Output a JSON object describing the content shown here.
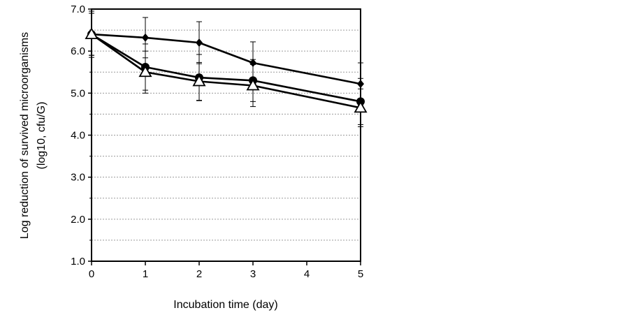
{
  "chart_data": {
    "type": "line",
    "title": "",
    "xlabel": "Incubation time (day)",
    "ylabel_lines": [
      "Log reduction of survived microorganisms",
      "(log10, cfu/G)"
    ],
    "x": [
      0,
      1,
      2,
      3,
      4,
      5
    ],
    "x_ticks": [
      "0",
      "1",
      "2",
      "3",
      "4",
      "5"
    ],
    "xlim": [
      0,
      5
    ],
    "ylim": [
      1.0,
      7.0
    ],
    "y_ticks": [
      "1.0",
      "2.0",
      "3.0",
      "4.0",
      "5.0",
      "6.0",
      "7.0"
    ],
    "y_minor_step": 0.5,
    "grid": true,
    "series": [
      {
        "name": "diamond",
        "marker": "diamond",
        "x": [
          0,
          1,
          2,
          3,
          5
        ],
        "values": [
          6.4,
          6.32,
          6.2,
          5.72,
          5.22
        ],
        "errors": [
          0.55,
          0.48,
          0.5,
          0.5,
          0.5
        ]
      },
      {
        "name": "circle",
        "marker": "circle",
        "x": [
          0,
          1,
          2,
          3,
          5
        ],
        "values": [
          6.4,
          5.62,
          5.37,
          5.3,
          4.8
        ],
        "errors": [
          0.5,
          0.55,
          0.55,
          0.5,
          0.55
        ]
      },
      {
        "name": "triangle",
        "marker": "triangle",
        "x": [
          0,
          1,
          2,
          3,
          5
        ],
        "values": [
          6.4,
          5.5,
          5.28,
          5.18,
          4.65
        ],
        "errors": [
          0.5,
          0.5,
          0.45,
          0.5,
          0.45
        ]
      }
    ]
  }
}
